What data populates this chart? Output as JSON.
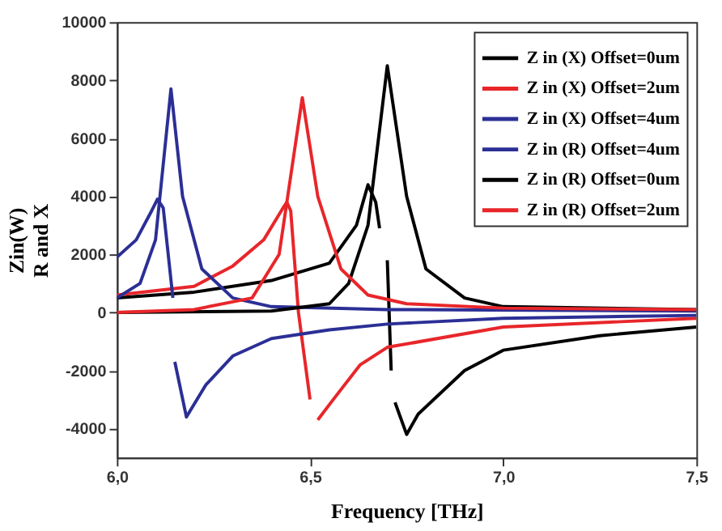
{
  "chart_data": {
    "type": "line",
    "xlabel": "Frequency [THz]",
    "ylabel": "Zin(W)\nR and X",
    "xlim": [
      6.0,
      7.5
    ],
    "xticks": [
      {
        "value": 6.0,
        "label": "6,0"
      },
      {
        "value": 6.5,
        "label": "6,5"
      },
      {
        "value": 7.0,
        "label": "7,0"
      },
      {
        "value": 7.5,
        "label": "7,5"
      }
    ],
    "ylim": [
      -5000,
      10000
    ],
    "yticks": [
      -4000,
      -2000,
      0,
      2000,
      4000,
      6000,
      8000,
      10000
    ],
    "grid": false,
    "legend": "top right",
    "line_style": "solid",
    "marker": "none",
    "series": [
      {
        "name": "Z in (X) Offset=0um",
        "color": "#000000",
        "x": [
          6.0,
          6.2,
          6.4,
          6.55,
          6.62,
          6.65,
          6.67,
          6.68,
          6.69,
          6.7,
          6.71,
          6.715,
          6.72,
          6.75,
          6.78,
          6.9,
          7.0,
          7.25,
          7.5
        ],
        "values": [
          500,
          700,
          1100,
          1700,
          3000,
          4400,
          3800,
          2900,
          null,
          1800,
          -2000,
          null,
          -3100,
          -4200,
          -3500,
          -2000,
          -1300,
          -800,
          -500
        ]
      },
      {
        "name": "Z in (X) Offset=2um",
        "color": "#e8262a",
        "x": [
          6.0,
          6.2,
          6.3,
          6.38,
          6.43,
          6.44,
          6.45,
          6.47,
          6.5,
          6.51,
          6.52,
          6.56,
          6.63,
          6.7,
          7.0,
          7.5
        ],
        "values": [
          600,
          900,
          1600,
          2500,
          3600,
          3800,
          3500,
          0,
          -3000,
          null,
          -3700,
          -3000,
          -1800,
          -1200,
          -500,
          -200
        ]
      },
      {
        "name": "Z in (X) Offset=4um",
        "color": "#2b2f95",
        "x": [
          6.0,
          6.05,
          6.09,
          6.105,
          6.12,
          6.145,
          6.147,
          6.15,
          6.18,
          6.23,
          6.3,
          6.4,
          6.55,
          6.7,
          7.0,
          7.5
        ],
        "values": [
          1900,
          2500,
          3500,
          3900,
          3600,
          500,
          null,
          -1700,
          -3600,
          -2500,
          -1500,
          -900,
          -600,
          -400,
          -200,
          -100
        ]
      },
      {
        "name": "Z in (R) Offset=4um",
        "color": "#2b2f95",
        "x": [
          6.0,
          6.06,
          6.1,
          6.14,
          6.17,
          6.22,
          6.3,
          6.4,
          6.7,
          7.5
        ],
        "values": [
          500,
          1000,
          2500,
          7700,
          4000,
          1500,
          500,
          200,
          100,
          50
        ]
      },
      {
        "name": "Z in (R) Offset=0um",
        "color": "#000000",
        "x": [
          6.0,
          6.4,
          6.55,
          6.6,
          6.65,
          6.7,
          6.75,
          6.8,
          6.9,
          7.0,
          7.5
        ],
        "values": [
          0,
          50,
          300,
          1000,
          3000,
          8500,
          4000,
          1500,
          500,
          200,
          100
        ]
      },
      {
        "name": "Z in (R) Offset=2um",
        "color": "#e8262a",
        "x": [
          6.0,
          6.2,
          6.35,
          6.42,
          6.48,
          6.52,
          6.58,
          6.65,
          6.75,
          7.0,
          7.5
        ],
        "values": [
          0,
          100,
          500,
          2000,
          7400,
          4000,
          1500,
          600,
          300,
          150,
          100
        ]
      }
    ]
  }
}
